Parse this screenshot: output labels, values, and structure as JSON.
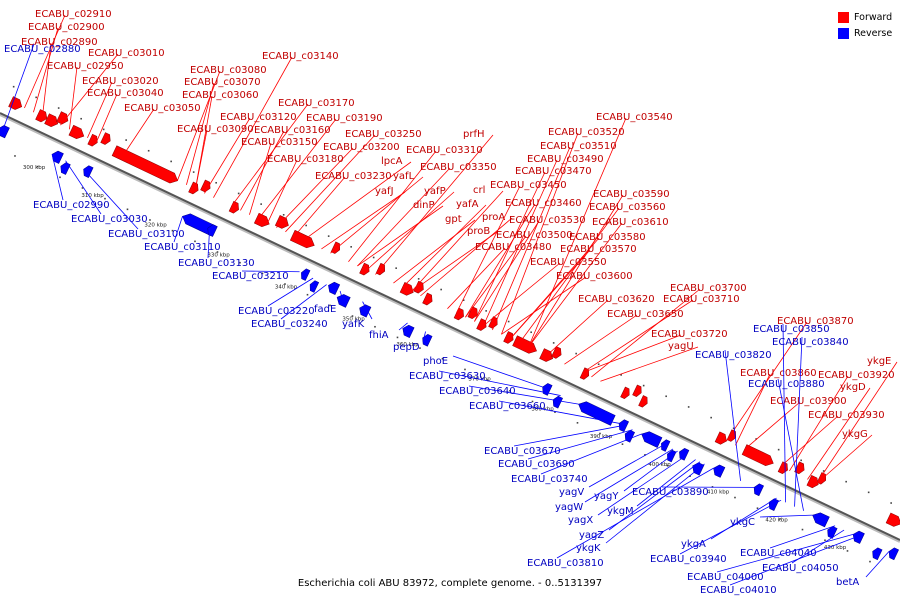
{
  "legend": {
    "forward": {
      "label": "Forward",
      "color": "#ff0000"
    },
    "reverse": {
      "label": "Reverse",
      "color": "#0000ff"
    }
  },
  "caption": "Escherichia coli ABU 83972, complete genome. - 0..5131397",
  "axis": {
    "ticks": [
      "300 kbp",
      "310 kbp",
      "320 kbp",
      "330 kbp",
      "340 kbp",
      "350 kbp",
      "360 kbp",
      "370 kbp",
      "380 kbp",
      "390 kbp",
      "400 kbp",
      "410 kbp",
      "420 kbp",
      "430 kbp"
    ]
  },
  "forward_labels": [
    "ECABU_c02910",
    "ECABU_c02900",
    "ECABU_c02890",
    "ECABU_c03010",
    "ECABU_c02950",
    "ECABU_c03020",
    "ECABU_c03040",
    "ECABU_c03050",
    "ECABU_c03080",
    "ECABU_c03070",
    "ECABU_c03060",
    "ECABU_c03140",
    "ECABU_c03170",
    "ECABU_c03120",
    "ECABU_c03190",
    "ECABU_c03090",
    "ECABU_c03160",
    "ECABU_c03250",
    "ECABU_c03150",
    "ECABU_c03200",
    "ECABU_c03180",
    "lpcA",
    "ECABU_c03230",
    "yafL",
    "yafJ",
    "prfH",
    "ECABU_c03310",
    "ECABU_c03350",
    "yafP",
    "dinP",
    "crl",
    "yafA",
    "gpt",
    "proA",
    "proB",
    "ECABU_c03540",
    "ECABU_c03520",
    "ECABU_c03510",
    "ECABU_c03490",
    "ECABU_c03470",
    "ECABU_c03450",
    "ECABU_c03460",
    "ECABU_c03530",
    "ECABU_c03500",
    "ECABU_c03480",
    "ECABU_c03590",
    "ECABU_c03560",
    "ECABU_c03610",
    "ECABU_c03580",
    "ECABU_c03570",
    "ECABU_c03550",
    "ECABU_c03600",
    "ECABU_c03700",
    "ECABU_c03710",
    "ECABU_c03620",
    "ECABU_c03650",
    "ECABU_c03720",
    "yagU",
    "ECABU_c03870",
    "ECABU_c03860",
    "ECABU_c03900",
    "ECABU_c03930",
    "ykgE",
    "ECABU_c03920",
    "ykgD",
    "ykgG"
  ],
  "reverse_labels": [
    "ECABU_c02880",
    "ECABU_c02990",
    "ECABU_c03030",
    "ECABU_c03100",
    "ECABU_c03110",
    "ECABU_c03130",
    "ECABU_c03210",
    "ECABU_c03220",
    "ECABU_c03240",
    "fadE",
    "yafK",
    "fhiA",
    "pepD",
    "phoE",
    "ECABU_c03630",
    "ECABU_c03640",
    "ECABU_c03660",
    "ECABU_c03850",
    "ECABU_c03840",
    "ECABU_c03820",
    "ECABU_c03880",
    "ECABU_c03670",
    "ECABU_c03690",
    "ECABU_c03740",
    "yagV",
    "yagY",
    "yagW",
    "yagX",
    "ykgM",
    "yagZ",
    "ykgK",
    "ECABU_c03810",
    "ECABU_c03890",
    "ykgA",
    "ECABU_c03940",
    "ykgC",
    "ECABU_c04040",
    "ECABU_c04050",
    "ECABU_c04000",
    "ECABU_c04010",
    "betA"
  ]
}
